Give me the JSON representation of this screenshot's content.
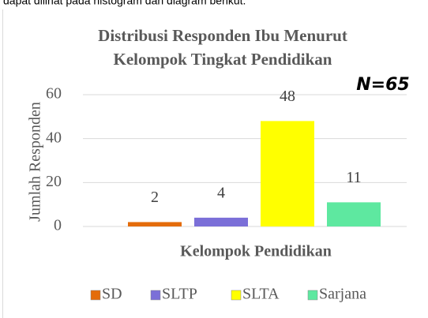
{
  "context_text": "dapat dilihat pada histogram dan diagram berikut.",
  "chart_data": {
    "type": "bar",
    "title": [
      "Distribusi Responden Ibu Menurut",
      "Kelompok Tingkat Pendidikan"
    ],
    "annotation": "N=65",
    "categories": [
      "SD",
      "SLTP",
      "SLTA",
      "Sarjana"
    ],
    "values": [
      2,
      4,
      48,
      11
    ],
    "colors": [
      "#e46c0a",
      "#7b6fd8",
      "#ffff00",
      "#5ee8a0"
    ],
    "x_label": "Kelompok Pendidikan",
    "y_label": "Jumlah Responden",
    "ylim": [
      0,
      60
    ],
    "yticks": [
      0,
      20,
      40,
      60
    ],
    "grid": true,
    "legend": "bottom"
  }
}
